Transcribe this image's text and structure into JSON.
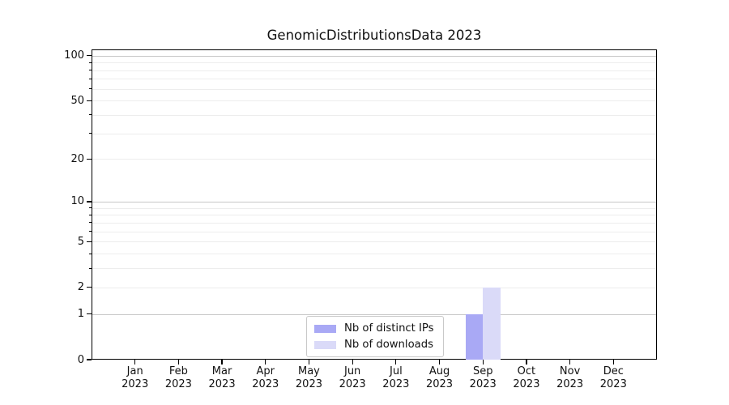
{
  "title": "GenomicDistributionsData 2023",
  "chart_data": {
    "type": "bar",
    "title": "GenomicDistributionsData 2023",
    "categories": [
      "Jan 2023",
      "Feb 2023",
      "Mar 2023",
      "Apr 2023",
      "May 2023",
      "Jun 2023",
      "Jul 2023",
      "Aug 2023",
      "Sep 2023",
      "Oct 2023",
      "Nov 2023",
      "Dec 2023"
    ],
    "series": [
      {
        "name": "Nb of distinct IPs",
        "color": "#a9a9f5",
        "values": [
          0,
          0,
          0,
          0,
          0,
          0,
          0,
          0,
          1,
          0,
          0,
          0
        ]
      },
      {
        "name": "Nb of downloads",
        "color": "#dadaf8",
        "values": [
          0,
          0,
          0,
          0,
          0,
          0,
          0,
          0,
          2,
          0,
          0,
          0
        ]
      }
    ],
    "xlabel": "",
    "ylabel": "",
    "yscale": "log1p",
    "ylim": [
      0,
      110
    ],
    "yticks": [
      {
        "label": "0",
        "value": 0
      },
      {
        "label": "1",
        "value": 1
      },
      {
        "label": "2",
        "value": 2
      },
      {
        "label": "5",
        "value": 5
      },
      {
        "label": "10",
        "value": 10
      },
      {
        "label": "20",
        "value": 20
      },
      {
        "label": "50",
        "value": 50
      },
      {
        "label": "100",
        "value": 100
      }
    ],
    "major_gridlines": [
      1,
      10,
      100
    ],
    "minor_gridlines": [
      2,
      3,
      4,
      5,
      6,
      7,
      8,
      9,
      20,
      30,
      40,
      50,
      60,
      70,
      80,
      90
    ],
    "grid": true,
    "legend_position": "lower center"
  },
  "legend": {
    "items": [
      {
        "label": "Nb of distinct IPs",
        "color": "#a9a9f5"
      },
      {
        "label": "Nb of downloads",
        "color": "#dadaf8"
      }
    ]
  },
  "colors": {
    "background": "#ffffff",
    "bar_distinct_ips": "#a9a9f5",
    "bar_downloads": "#dadaf8",
    "major_grid": "#c8c8c8",
    "minor_grid": "#ededed",
    "spine": "#000000",
    "legend_border": "#c9c9c9",
    "text": "#111111"
  }
}
